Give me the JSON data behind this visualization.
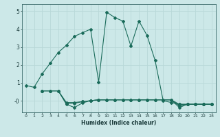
{
  "title": "",
  "xlabel": "Humidex (Indice chaleur)",
  "ylabel": "",
  "background_color": "#cce8e8",
  "grid_color": "#b8d8d8",
  "line_color": "#1a6b5a",
  "xlim": [
    -0.5,
    23.5
  ],
  "ylim": [
    -0.65,
    5.4
  ],
  "xticks": [
    0,
    1,
    2,
    3,
    4,
    5,
    6,
    7,
    8,
    9,
    10,
    11,
    12,
    13,
    14,
    15,
    16,
    17,
    18,
    19,
    20,
    21,
    22,
    23
  ],
  "yticks": [
    0,
    1,
    2,
    3,
    4,
    5
  ],
  "ytick_labels": [
    "-0",
    "1",
    "2",
    "3",
    "4",
    "5"
  ],
  "line1_x": [
    0,
    1,
    2,
    3,
    4,
    5,
    6,
    7,
    8,
    9,
    10,
    11,
    12,
    13,
    14,
    15,
    16,
    17,
    18,
    19,
    20,
    21,
    22,
    23
  ],
  "line1_y": [
    0.85,
    0.75,
    1.5,
    2.1,
    2.7,
    3.1,
    3.6,
    3.8,
    4.0,
    1.05,
    4.95,
    4.65,
    4.45,
    3.05,
    4.45,
    3.65,
    2.25,
    0.0,
    -0.1,
    -0.2,
    -0.2,
    -0.2,
    -0.2,
    -0.2
  ],
  "line2_x": [
    2,
    3,
    4,
    5,
    6,
    7,
    8,
    9,
    10,
    11,
    12,
    13,
    14,
    15,
    16,
    17,
    18,
    19,
    20,
    21,
    22,
    23
  ],
  "line2_y": [
    0.55,
    0.55,
    0.55,
    -0.15,
    -0.15,
    -0.05,
    0.0,
    0.05,
    0.05,
    0.05,
    0.05,
    0.05,
    0.05,
    0.05,
    0.05,
    0.05,
    0.05,
    -0.2,
    -0.2,
    -0.2,
    -0.2,
    -0.2
  ],
  "line3_x": [
    2,
    3,
    4,
    5,
    6,
    7,
    8,
    9,
    10,
    11,
    12,
    13,
    14,
    15,
    16,
    17,
    18,
    19,
    20,
    21,
    22,
    23
  ],
  "line3_y": [
    0.55,
    0.55,
    0.55,
    -0.2,
    -0.38,
    -0.12,
    0.0,
    0.05,
    0.05,
    0.05,
    0.05,
    0.05,
    0.05,
    0.05,
    0.05,
    0.05,
    0.05,
    -0.38,
    -0.2,
    -0.2,
    -0.2,
    -0.2
  ],
  "line4_x": [
    2,
    3,
    4,
    5,
    6,
    7,
    8,
    9,
    10,
    11,
    12,
    13,
    14,
    15,
    16,
    17,
    18,
    19,
    20,
    21,
    22,
    23
  ],
  "line4_y": [
    0.55,
    0.55,
    0.55,
    -0.1,
    -0.1,
    -0.05,
    0.0,
    0.05,
    0.05,
    0.05,
    0.05,
    0.05,
    0.05,
    0.05,
    0.05,
    0.05,
    0.05,
    -0.28,
    -0.2,
    -0.2,
    -0.2,
    -0.2
  ]
}
